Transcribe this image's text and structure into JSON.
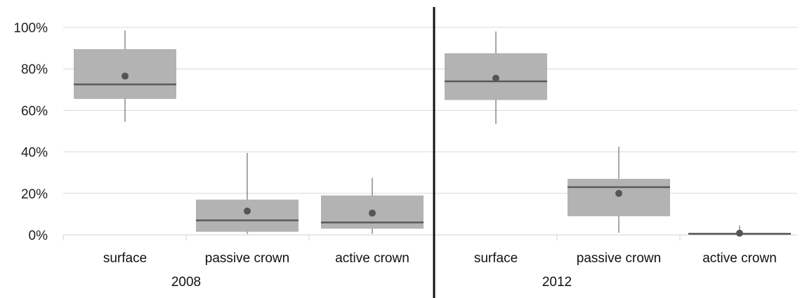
{
  "chart_data": {
    "type": "box",
    "y_axis": {
      "ticks": [
        0,
        20,
        40,
        60,
        80,
        100
      ],
      "tick_labels": [
        "0%",
        "20%",
        "40%",
        "60%",
        "80%",
        "100%"
      ],
      "ylim": [
        0,
        100
      ],
      "grid": true
    },
    "categories": [
      "surface",
      "passive crown",
      "active crown"
    ],
    "groups": [
      {
        "label": "2008",
        "boxes": [
          {
            "category": "surface",
            "min": 54.5,
            "q1": 65.5,
            "median": 72.5,
            "q3": 89.5,
            "max": 98.5,
            "mean": 76.5
          },
          {
            "category": "passive crown",
            "min": 0.5,
            "q1": 1.5,
            "median": 7,
            "q3": 17,
            "max": 39.5,
            "mean": 11.5
          },
          {
            "category": "active crown",
            "min": 0.5,
            "q1": 3,
            "median": 6,
            "q3": 19,
            "max": 27.5,
            "mean": 10.5
          }
        ]
      },
      {
        "label": "2012",
        "boxes": [
          {
            "category": "surface",
            "min": 53.5,
            "q1": 65,
            "median": 74,
            "q3": 87.5,
            "max": 98,
            "mean": 75.5
          },
          {
            "category": "passive crown",
            "min": 1,
            "q1": 9,
            "median": 23,
            "q3": 27,
            "max": 42.5,
            "mean": 20
          },
          {
            "category": "active crown",
            "min": 0,
            "q1": 0.2,
            "median": 0.5,
            "q3": 1,
            "max": 4.5,
            "mean": 0.8
          }
        ]
      }
    ],
    "colors": {
      "box_fill": "#b3b3b3",
      "median_line": "#5a5a5a",
      "whisker": "#8a8a8a",
      "mean_dot": "#555555",
      "gridline": "#d9d9d9",
      "divider": "#111111"
    }
  }
}
